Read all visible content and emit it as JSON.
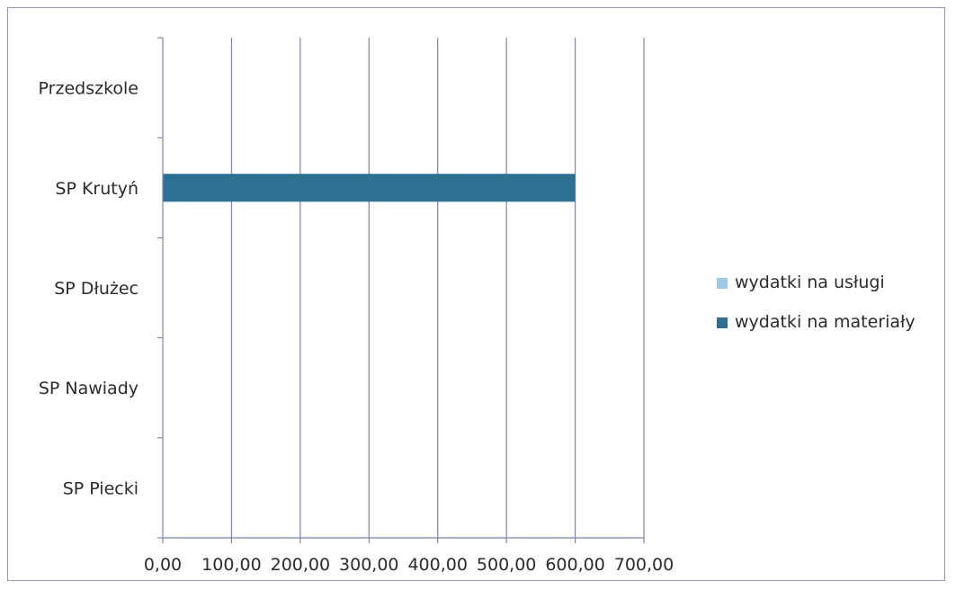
{
  "chart_data": {
    "type": "bar",
    "orientation": "horizontal",
    "categories": [
      "SP Piecki",
      "SP Nawiady",
      "SP Dłużec",
      "SP Krutyń",
      "Przedszkole"
    ],
    "series": [
      {
        "name": "wydatki na materiały",
        "values": [
          0,
          0,
          0,
          600,
          0
        ],
        "color": "#2e6f94"
      },
      {
        "name": "wydatki na usługi",
        "values": [
          0,
          0,
          0,
          0,
          0
        ],
        "color": "#9ec9e6"
      }
    ],
    "x_tick_labels": [
      "0,00",
      "100,00",
      "200,00",
      "300,00",
      "400,00",
      "500,00",
      "600,00",
      "700,00"
    ],
    "xlim": [
      0,
      700
    ],
    "x_tick_step": 100,
    "grid": "vertical",
    "legend": {
      "position": "right",
      "entries": [
        "wydatki na usługi",
        "wydatki na materiały"
      ]
    },
    "title": "",
    "xlabel": "",
    "ylabel": "",
    "colors": {
      "grid": "#7a83b8",
      "axis": "#7a83b8"
    }
  }
}
